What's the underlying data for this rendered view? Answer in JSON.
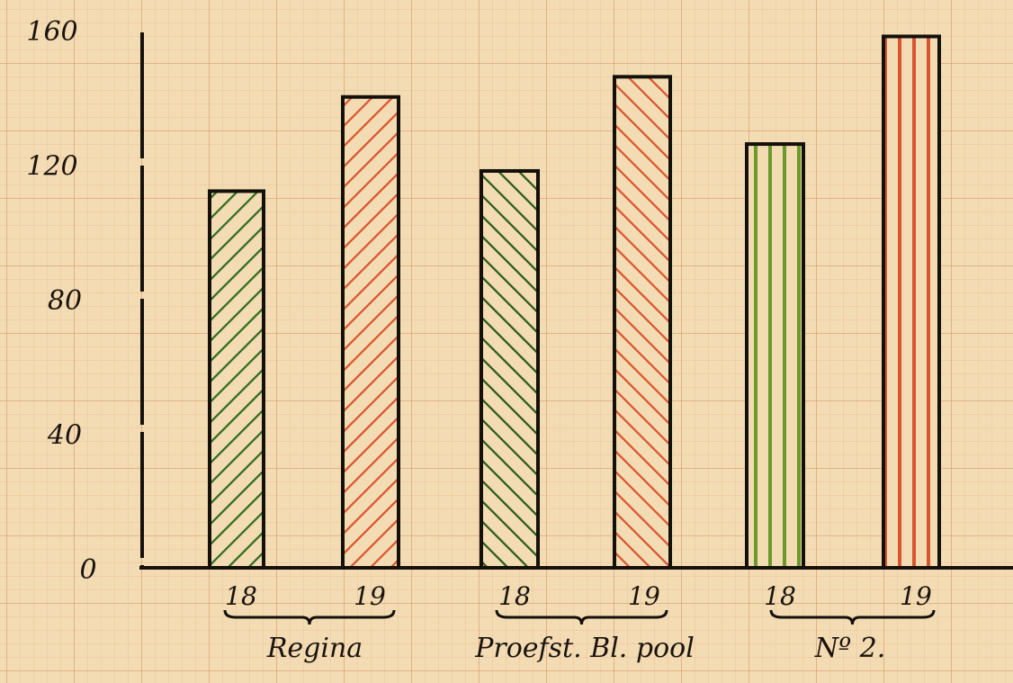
{
  "chart_data": {
    "type": "bar",
    "title": "",
    "xlabel": "",
    "ylabel": "",
    "ylim": [
      0,
      160
    ],
    "yticks": [
      "0",
      "40",
      "80",
      "120",
      "160"
    ],
    "ytick_values": [
      0,
      40,
      80,
      120,
      160
    ],
    "grid": true,
    "groups": [
      {
        "label": "Regina",
        "bars": [
          {
            "label": "18",
            "value": 112,
            "color": "#2f6b1e",
            "pattern": "diagonal-up"
          },
          {
            "label": "19",
            "value": 140,
            "color": "#d9552f",
            "pattern": "diagonal-up"
          }
        ]
      },
      {
        "label": "Proefst. Bl. pool",
        "bars": [
          {
            "label": "18",
            "value": 118,
            "color": "#2a5a18",
            "pattern": "diagonal-down"
          },
          {
            "label": "19",
            "value": 146,
            "color": "#d9552f",
            "pattern": "diagonal-down"
          }
        ]
      },
      {
        "label": "Nº 2.",
        "bars": [
          {
            "label": "18",
            "value": 126,
            "color": "#6a9a2a",
            "pattern": "vertical"
          },
          {
            "label": "19",
            "value": 158,
            "color": "#d9552f",
            "pattern": "vertical"
          }
        ]
      }
    ]
  }
}
